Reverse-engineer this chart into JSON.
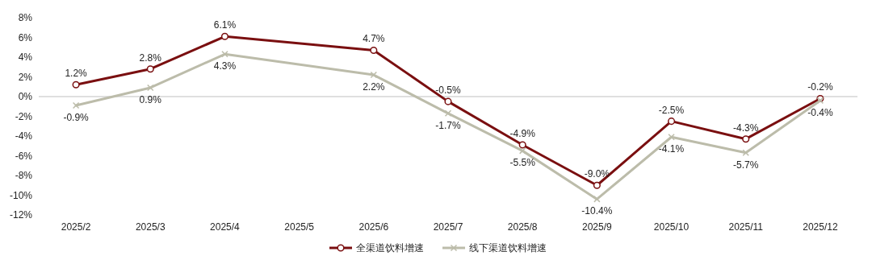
{
  "chart_data": {
    "type": "line",
    "categories": [
      "2025/2",
      "2025/3",
      "2025/4",
      "2025/5",
      "2025/6",
      "2025/7",
      "2025/8",
      "2025/9",
      "2025/10",
      "2025/11",
      "2025/12"
    ],
    "series": [
      {
        "name": "全渠道饮料增速",
        "color": "#7a0f10",
        "marker": "circle",
        "values": [
          1.2,
          2.8,
          6.1,
          null,
          4.7,
          -0.5,
          -4.9,
          -9.0,
          -2.5,
          -4.3,
          -0.2
        ],
        "value_labels": [
          "1.2%",
          "2.8%",
          "6.1%",
          null,
          "4.7%",
          "-0.5%",
          "-4.9%",
          "-9.0%",
          "-2.5%",
          "-4.3%",
          "-0.2%"
        ]
      },
      {
        "name": "线下渠道饮料增速",
        "color": "#bcbcaa",
        "marker": "cross",
        "values": [
          -0.9,
          0.9,
          4.3,
          null,
          2.2,
          -1.7,
          -5.5,
          -10.4,
          -4.1,
          -5.7,
          -0.4
        ],
        "value_labels": [
          "-0.9%",
          "0.9%",
          "4.3%",
          null,
          "2.2%",
          "-1.7%",
          "-5.5%",
          "-10.4%",
          "-4.1%",
          "-5.7%",
          "-0.4%"
        ]
      }
    ],
    "ylim": [
      -12,
      8
    ],
    "yticks": [
      {
        "value": -12,
        "label": "-12%"
      },
      {
        "value": -10,
        "label": "-10%"
      },
      {
        "value": -8,
        "label": "-8%"
      },
      {
        "value": -6,
        "label": "-6%"
      },
      {
        "value": -4,
        "label": "-4%"
      },
      {
        "value": -2,
        "label": "-2%"
      },
      {
        "value": 0,
        "label": "0%"
      },
      {
        "value": 2,
        "label": "2%"
      },
      {
        "value": 4,
        "label": "4%"
      },
      {
        "value": 6,
        "label": "6%"
      },
      {
        "value": 8,
        "label": "8%"
      }
    ],
    "legend": "bottom",
    "line_style": "solid"
  }
}
